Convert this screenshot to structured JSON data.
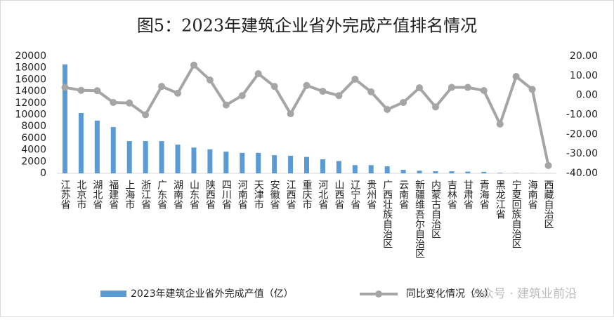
{
  "chart_data": {
    "type": "bar",
    "title": "图5：2023年建筑企业省外完成产值排名情况",
    "categories": [
      "江苏省",
      "北京市",
      "湖北省",
      "福建省",
      "上海市",
      "浙江省",
      "广东省",
      "湖南省",
      "山东省",
      "陕西省",
      "四川省",
      "河南省",
      "天津市",
      "安徽省",
      "江西省",
      "重庆市",
      "河北省",
      "山西省",
      "辽宁省",
      "贵州省",
      "广西壮族自治区",
      "云南省",
      "新疆维吾尔自治区",
      "内蒙古自治区",
      "吉林省",
      "甘肃省",
      "青海省",
      "黑龙江省",
      "宁夏回族自治区",
      "海南省",
      "西藏自治区"
    ],
    "series": [
      {
        "name": "2023年建筑企业省外完成产值（亿）",
        "type": "bar",
        "color": "#5b9bd5",
        "values": [
          18600,
          10300,
          9000,
          7900,
          5500,
          5500,
          5500,
          4900,
          4400,
          4100,
          3700,
          3500,
          3500,
          3100,
          3000,
          2800,
          2400,
          2100,
          1400,
          1400,
          1200,
          600,
          450,
          350,
          350,
          300,
          250,
          100,
          50,
          30,
          10
        ]
      },
      {
        "name": "同比变化情况（%）",
        "type": "line",
        "axis": "y2",
        "color": "#a5a5a5",
        "values": [
          4,
          2.5,
          2.3,
          -3.7,
          -4,
          -10,
          4.5,
          1,
          15.4,
          7.8,
          -5,
          -0.2,
          11,
          4.5,
          -9.5,
          5,
          2,
          -0.2,
          8.2,
          1.7,
          -7.3,
          -3.7,
          3.8,
          -6,
          4,
          4,
          2.4,
          -14.8,
          9.6,
          3,
          -36
        ]
      }
    ],
    "ylim": [
      0,
      20000
    ],
    "yticks": [
      0,
      2000,
      4000,
      6000,
      8000,
      10000,
      12000,
      14000,
      16000,
      18000,
      20000
    ],
    "y2lim": [
      -40,
      20
    ],
    "y2ticks": [
      {
        "value": -40,
        "label": "-40.00"
      },
      {
        "value": -30,
        "label": "-30.00"
      },
      {
        "value": -20,
        "label": "-20.00"
      },
      {
        "value": -10,
        "label": "-10.00"
      },
      {
        "value": 0,
        "label": "0.00"
      },
      {
        "value": 10,
        "label": "10.00"
      },
      {
        "value": 20,
        "label": "20.00"
      }
    ],
    "grid": false,
    "legend": "bottom",
    "watermark": "公众号 · 建筑业前沿"
  }
}
